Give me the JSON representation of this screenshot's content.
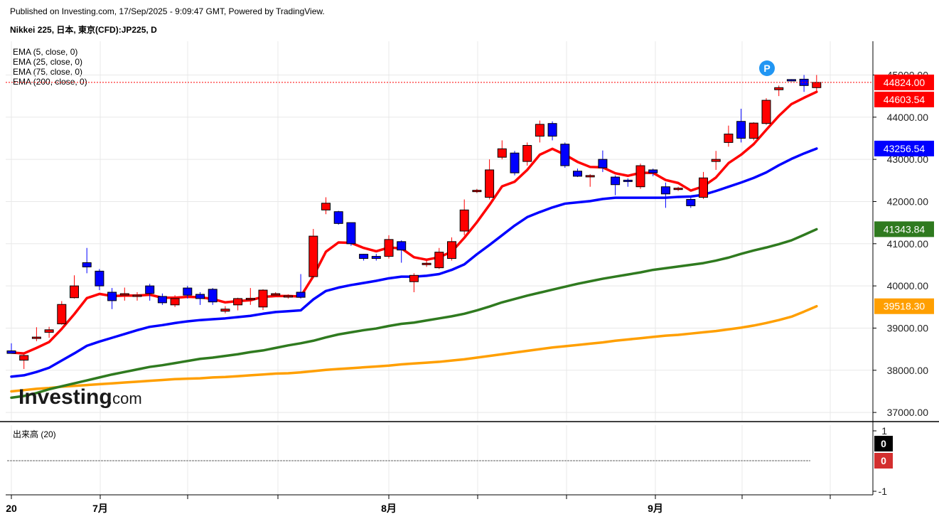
{
  "header": {
    "publisher": "Published on Investing.com, 17/Sep/2025 - 9:09:47 GMT, Powered by TradingView.",
    "symbol": "Nikkei 225, 日本, 東京(CFD):JP225, D"
  },
  "legend": {
    "ema5": "EMA (5, close, 0)",
    "ema25": "EMA (25, close, 0)",
    "ema75": "EMA (75, close, 0)",
    "ema200": "EMA (200, close, 0)",
    "volume": "出来高 (20)"
  },
  "logo": {
    "main": "Investing",
    "suffix": ".com"
  },
  "marker": {
    "label": "P",
    "color": "#2196f3"
  },
  "colors": {
    "up": "#ff0000",
    "down": "#0000ff",
    "ema5": "#ff0000",
    "ema25": "#0000ff",
    "ema75": "#2f7a1f",
    "ema200": "#ff9f00",
    "grid": "#e8e8e8"
  },
  "chart_data": {
    "type": "candlestick",
    "ylim": [
      36800,
      45800
    ],
    "y_ticks": [
      "37000.00",
      "38000.00",
      "39000.00",
      "40000.00",
      "41000.00",
      "42000.00",
      "43000.00",
      "44000.00",
      "45000.00"
    ],
    "x_labels": [
      "20",
      "7月",
      "8月",
      "9月"
    ],
    "price_labels": [
      {
        "text": "44824.00",
        "value": 44824,
        "color": "#ff0000"
      },
      {
        "text": "44603.54",
        "value": 44603.54,
        "color": "#ff0000"
      },
      {
        "text": "43256.54",
        "value": 43256.54,
        "color": "#0000ff"
      },
      {
        "text": "41343.84",
        "value": 41343.84,
        "color": "#2f7a1f"
      },
      {
        "text": "39518.30",
        "value": 39518.3,
        "color": "#ff9f00"
      }
    ],
    "candles": [
      [
        38460,
        38400,
        38640,
        38400
      ],
      [
        38240,
        38350,
        38380,
        38030
      ],
      [
        38760,
        38780,
        39020,
        38690
      ],
      [
        38900,
        38960,
        39030,
        38770
      ],
      [
        39100,
        39560,
        39640,
        39080
      ],
      [
        39720,
        40000,
        40250,
        39700
      ],
      [
        40550,
        40450,
        40900,
        40300
      ],
      [
        40350,
        40000,
        40400,
        39900
      ],
      [
        39850,
        39650,
        39950,
        39450
      ],
      [
        39800,
        39800,
        39960,
        39650
      ],
      [
        39750,
        39780,
        39850,
        39650
      ],
      [
        40000,
        39820,
        40050,
        39650
      ],
      [
        39750,
        39600,
        39820,
        39550
      ],
      [
        39550,
        39700,
        39780,
        39500
      ],
      [
        39950,
        39780,
        40000,
        39700
      ],
      [
        39800,
        39700,
        39850,
        39550
      ],
      [
        39920,
        39620,
        39950,
        39550
      ],
      [
        39400,
        39450,
        39520,
        39350
      ],
      [
        39550,
        39700,
        39720,
        39420
      ],
      [
        39680,
        39700,
        39950,
        39550
      ],
      [
        39500,
        39900,
        39920,
        39430
      ],
      [
        39800,
        39800,
        39850,
        39750
      ],
      [
        39750,
        39750,
        39800,
        39700
      ],
      [
        39850,
        39730,
        40280,
        39700
      ],
      [
        40220,
        41180,
        41350,
        40180
      ],
      [
        41800,
        41960,
        42100,
        41700
      ],
      [
        41760,
        41480,
        41780,
        41450
      ],
      [
        41500,
        41000,
        41500,
        40950
      ],
      [
        40750,
        40650,
        40760,
        40600
      ],
      [
        40700,
        40650,
        40760,
        40600
      ],
      [
        40700,
        41100,
        41200,
        40650
      ],
      [
        41050,
        40850,
        41080,
        40550
      ],
      [
        40100,
        40250,
        40300,
        39850
      ],
      [
        40520,
        40520,
        40620,
        40450
      ],
      [
        40430,
        40800,
        40900,
        40400
      ],
      [
        40650,
        41050,
        41150,
        40600
      ],
      [
        41300,
        41800,
        42050,
        41200
      ],
      [
        42250,
        42250,
        42300,
        42200
      ],
      [
        42100,
        42750,
        43000,
        42050
      ],
      [
        43050,
        43250,
        43450,
        43000
      ],
      [
        43150,
        42680,
        43200,
        42620
      ],
      [
        42950,
        43330,
        43400,
        42850
      ],
      [
        43550,
        43830,
        43920,
        43400
      ],
      [
        43850,
        43550,
        43900,
        43450
      ],
      [
        43360,
        42850,
        43400,
        42800
      ],
      [
        42720,
        42600,
        42780,
        42580
      ],
      [
        42600,
        42600,
        42650,
        42350
      ],
      [
        43000,
        42800,
        43210,
        42700
      ],
      [
        42580,
        42400,
        42620,
        42150
      ],
      [
        42500,
        42480,
        42550,
        42350
      ],
      [
        42350,
        42850,
        42900,
        42300
      ],
      [
        42750,
        42680,
        42780,
        42600
      ],
      [
        42350,
        42180,
        42450,
        41850
      ],
      [
        42300,
        42300,
        42350,
        42250
      ],
      [
        42050,
        41900,
        42100,
        41850
      ],
      [
        42100,
        42560,
        42700,
        42060
      ],
      [
        42950,
        43000,
        43200,
        42750
      ],
      [
        43400,
        43600,
        43800,
        43300
      ],
      [
        43900,
        43500,
        44200,
        43400
      ],
      [
        43500,
        43860,
        43880,
        43450
      ],
      [
        43850,
        44400,
        44450,
        43820
      ],
      [
        44650,
        44700,
        44750,
        44500
      ],
      [
        44880,
        44870,
        44900,
        44850
      ],
      [
        44900,
        44750,
        45000,
        44600
      ],
      [
        44700,
        44824,
        45000,
        44600
      ]
    ],
    "ema": [
      {
        "name": "EMA (5, close, 0)",
        "color": "#ff0000",
        "values": [
          38420,
          38400,
          38530,
          38670,
          38980,
          39330,
          39710,
          39810,
          39760,
          39770,
          39770,
          39790,
          39720,
          39720,
          39740,
          39730,
          39690,
          39610,
          39640,
          39660,
          39740,
          39760,
          39760,
          39750,
          40230,
          40810,
          41030,
          41020,
          40900,
          40820,
          40910,
          40890,
          40680,
          40620,
          40680,
          40810,
          41140,
          41510,
          41920,
          42360,
          42470,
          42750,
          43110,
          43250,
          43110,
          42940,
          42820,
          42810,
          42670,
          42610,
          42680,
          42680,
          42510,
          42440,
          42260,
          42360,
          42570,
          42910,
          43110,
          43360,
          43700,
          44030,
          44310,
          44460,
          44600
        ]
      },
      {
        "name": "EMA (25, close, 0)",
        "color": "#0000ff",
        "values": [
          37850,
          37880,
          37960,
          38060,
          38230,
          38400,
          38580,
          38680,
          38770,
          38860,
          38950,
          39030,
          39070,
          39120,
          39160,
          39190,
          39210,
          39230,
          39260,
          39290,
          39340,
          39380,
          39400,
          39420,
          39680,
          39880,
          39960,
          40020,
          40070,
          40120,
          40180,
          40220,
          40220,
          40240,
          40280,
          40380,
          40510,
          40750,
          40970,
          41200,
          41430,
          41630,
          41750,
          41860,
          41950,
          41980,
          42010,
          42060,
          42090,
          42090,
          42090,
          42090,
          42090,
          42110,
          42120,
          42160,
          42250,
          42350,
          42450,
          42560,
          42690,
          42860,
          43010,
          43140,
          43256
        ]
      },
      {
        "name": "EMA (75, close, 0)",
        "color": "#2f7a1f",
        "values": [
          37350,
          37390,
          37460,
          37550,
          37620,
          37690,
          37760,
          37830,
          37900,
          37960,
          38020,
          38080,
          38120,
          38170,
          38220,
          38270,
          38300,
          38340,
          38380,
          38430,
          38470,
          38530,
          38590,
          38640,
          38700,
          38780,
          38850,
          38900,
          38950,
          38990,
          39050,
          39100,
          39130,
          39180,
          39230,
          39280,
          39340,
          39420,
          39510,
          39610,
          39690,
          39770,
          39840,
          39910,
          39980,
          40050,
          40110,
          40170,
          40220,
          40270,
          40320,
          40380,
          40420,
          40460,
          40500,
          40540,
          40600,
          40670,
          40760,
          40840,
          40910,
          40990,
          41080,
          41210,
          41343
        ]
      },
      {
        "name": "EMA (200, close, 0)",
        "color": "#ff9f00",
        "values": [
          37500,
          37530,
          37560,
          37580,
          37610,
          37630,
          37650,
          37670,
          37690,
          37710,
          37730,
          37750,
          37770,
          37790,
          37800,
          37810,
          37830,
          37840,
          37860,
          37880,
          37900,
          37920,
          37930,
          37950,
          37980,
          38010,
          38030,
          38050,
          38070,
          38090,
          38110,
          38140,
          38160,
          38180,
          38200,
          38230,
          38260,
          38300,
          38340,
          38380,
          38420,
          38460,
          38500,
          38540,
          38570,
          38600,
          38630,
          38660,
          38700,
          38730,
          38760,
          38790,
          38820,
          38840,
          38870,
          38900,
          38930,
          38970,
          39010,
          39060,
          39120,
          39190,
          39270,
          39390,
          39518
        ]
      }
    ],
    "volume_pane": {
      "y_ticks": [
        "1",
        "-1"
      ],
      "labels": [
        {
          "text": "0",
          "color": "#000000"
        },
        {
          "text": "0",
          "color": "#d32f2f"
        }
      ]
    }
  }
}
